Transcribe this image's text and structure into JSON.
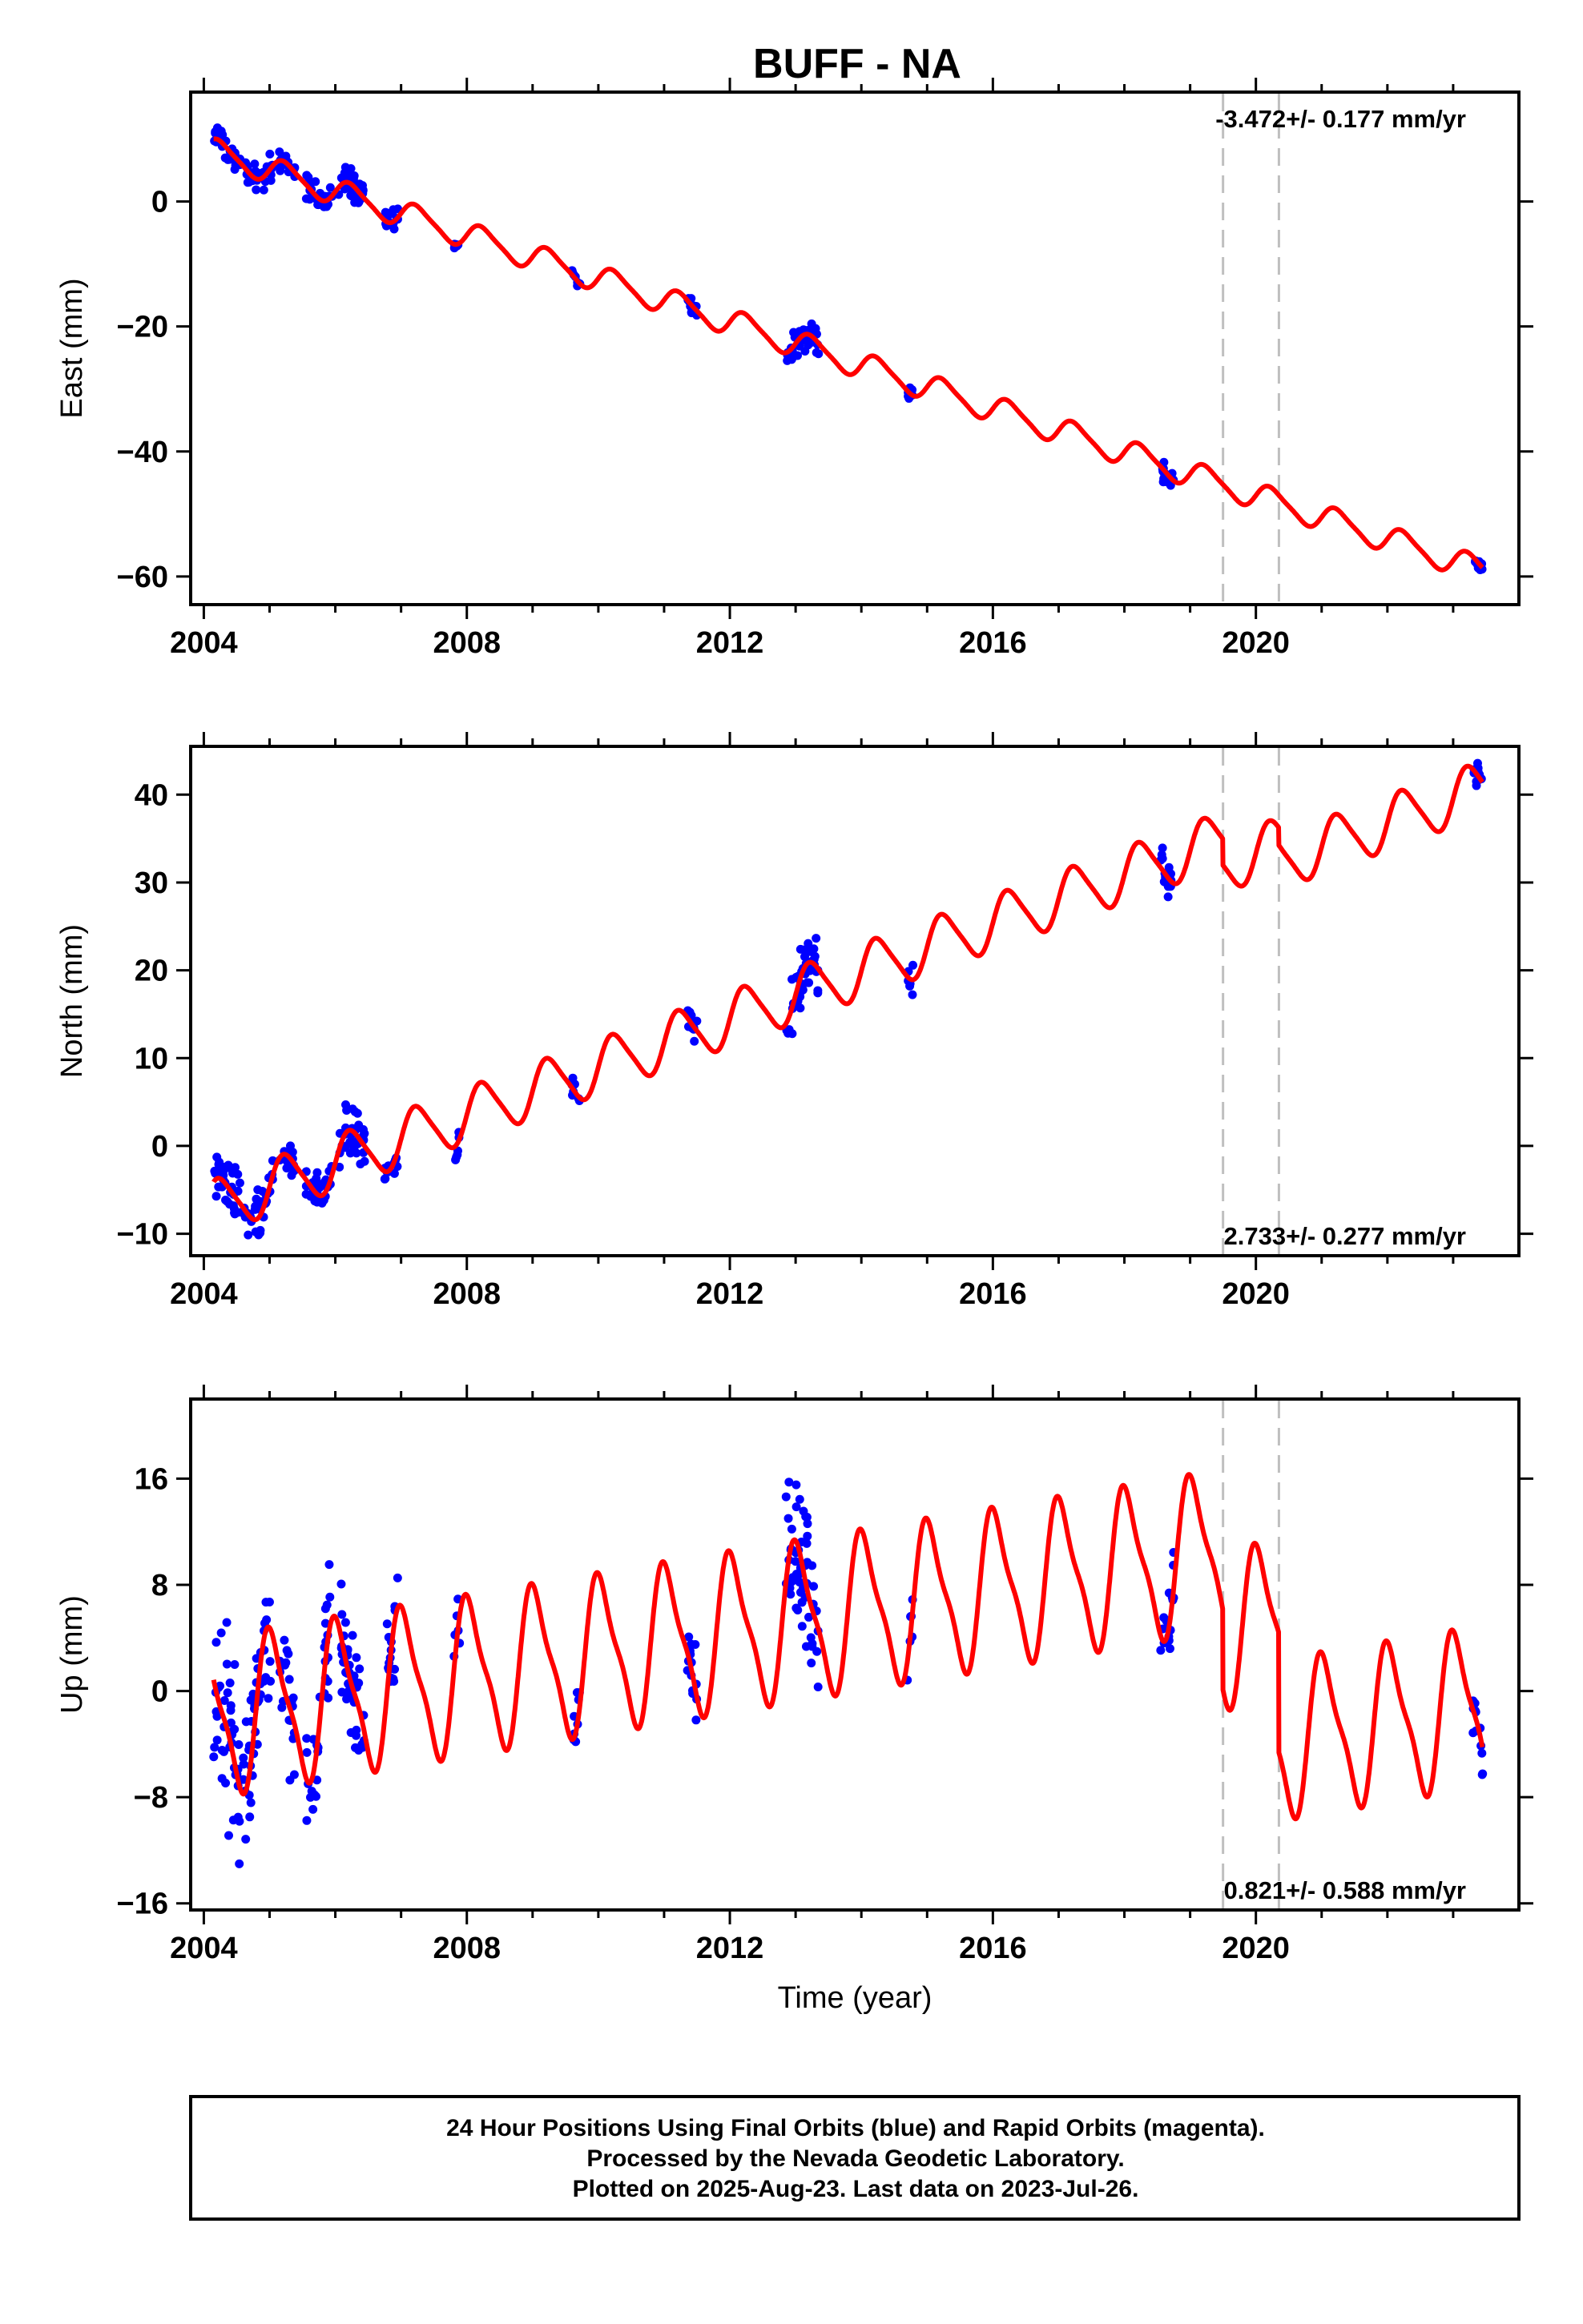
{
  "title": "BUFF - NA",
  "colors": {
    "final_orbits": "#0000ff",
    "model": "#ff0000",
    "offset_line": "#bfbfbf",
    "frame": "#000000"
  },
  "footer": {
    "line1": "24 Hour Positions Using Final Orbits (blue) and Rapid Orbits (magenta).",
    "line2": "Processed by the Nevada Geodetic Laboratory.",
    "line3": "Plotted on 2025-Aug-23. Last data on 2023-Jul-26."
  },
  "chart_data": [
    {
      "type": "scatter",
      "panel": "east",
      "ylabel": "East (mm)",
      "xlabel": "",
      "xlim": [
        2003.8,
        2024.0
      ],
      "ylim": [
        -64.5,
        17.5
      ],
      "xticks": [
        2004,
        2008,
        2012,
        2016,
        2020
      ],
      "yticks": [
        0,
        -20,
        -40,
        -60
      ],
      "offset_lines": [
        2019.5,
        2020.35
      ],
      "rate_label": "-3.472+/- 0.177 mm/yr",
      "rate_label_position": "top-right",
      "model": {
        "rate": -3.472,
        "intercept": 8.0,
        "amp_annual": 2.0,
        "phase": 0.0,
        "amp_semi": 0.4,
        "steps": [
          [
            2019.5,
            0.0
          ],
          [
            2020.35,
            0.0
          ]
        ]
      },
      "clusters": [
        {
          "start": 2004.15,
          "end": 2004.55,
          "n": 36,
          "spread": 2.5
        },
        {
          "start": 2004.6,
          "end": 2005.05,
          "n": 36,
          "spread": 2.2
        },
        {
          "start": 2005.15,
          "end": 2005.4,
          "n": 18,
          "spread": 1.6
        },
        {
          "start": 2005.55,
          "end": 2005.95,
          "n": 30,
          "spread": 2.2
        },
        {
          "start": 2006.05,
          "end": 2006.45,
          "n": 36,
          "spread": 2.4
        },
        {
          "start": 2006.75,
          "end": 2006.95,
          "n": 16,
          "spread": 1.6
        },
        {
          "start": 2007.8,
          "end": 2007.9,
          "n": 6,
          "spread": 0.8
        },
        {
          "start": 2009.6,
          "end": 2009.72,
          "n": 8,
          "spread": 1.0
        },
        {
          "start": 2011.35,
          "end": 2011.5,
          "n": 14,
          "spread": 1.5
        },
        {
          "start": 2012.85,
          "end": 2013.35,
          "n": 45,
          "spread": 2.4
        },
        {
          "start": 2014.7,
          "end": 2014.8,
          "n": 6,
          "spread": 1.0
        },
        {
          "start": 2018.55,
          "end": 2018.75,
          "n": 18,
          "spread": 1.5
        },
        {
          "start": 2023.3,
          "end": 2023.45,
          "n": 12,
          "spread": 1.0
        }
      ]
    },
    {
      "type": "scatter",
      "panel": "north",
      "ylabel": "North (mm)",
      "xlabel": "",
      "xlim": [
        2003.8,
        2024.0
      ],
      "ylim": [
        -12.5,
        45.5
      ],
      "xticks": [
        2004,
        2008,
        2012,
        2016,
        2020
      ],
      "yticks": [
        -10,
        0,
        10,
        20,
        30,
        40
      ],
      "offset_lines": [
        2019.5,
        2020.35
      ],
      "rate_label": "2.733+/- 0.277 mm/yr",
      "rate_label_position": "bottom-right",
      "model": {
        "rate": 2.733,
        "intercept": -7.0,
        "amp_annual": 3.0,
        "phase": 0.0,
        "amp_semi": 0.5,
        "steps": [
          [
            2019.5,
            -3.0
          ],
          [
            2020.35,
            -2.0
          ]
        ]
      },
      "clusters": [
        {
          "start": 2004.15,
          "end": 2004.55,
          "n": 36,
          "spread": 3.2
        },
        {
          "start": 2004.6,
          "end": 2005.05,
          "n": 36,
          "spread": 2.6
        },
        {
          "start": 2005.15,
          "end": 2005.4,
          "n": 18,
          "spread": 2.0
        },
        {
          "start": 2005.55,
          "end": 2005.95,
          "n": 30,
          "spread": 2.2
        },
        {
          "start": 2006.05,
          "end": 2006.45,
          "n": 36,
          "spread": 2.6
        },
        {
          "start": 2006.75,
          "end": 2006.95,
          "n": 16,
          "spread": 1.6
        },
        {
          "start": 2007.8,
          "end": 2007.9,
          "n": 6,
          "spread": 1.6
        },
        {
          "start": 2009.6,
          "end": 2009.72,
          "n": 8,
          "spread": 1.6
        },
        {
          "start": 2011.35,
          "end": 2011.5,
          "n": 14,
          "spread": 1.6
        },
        {
          "start": 2012.85,
          "end": 2013.35,
          "n": 45,
          "spread": 3.0
        },
        {
          "start": 2014.7,
          "end": 2014.8,
          "n": 6,
          "spread": 1.4
        },
        {
          "start": 2018.55,
          "end": 2018.75,
          "n": 18,
          "spread": 1.8
        },
        {
          "start": 2023.3,
          "end": 2023.45,
          "n": 12,
          "spread": 1.4
        }
      ]
    },
    {
      "type": "scatter",
      "panel": "up",
      "ylabel": "Up (mm)",
      "xlabel": "Time (year)",
      "xlim": [
        2003.8,
        2024.0
      ],
      "ylim": [
        -16.5,
        22.0
      ],
      "xticks": [
        2004,
        2008,
        2012,
        2016,
        2020
      ],
      "yticks": [
        16,
        8,
        0,
        -8,
        -16
      ],
      "offset_lines": [
        2019.5,
        2020.35
      ],
      "rate_label": "0.821+/- 0.588 mm/yr",
      "rate_label_position": "bottom-right",
      "model": {
        "rate": 0.821,
        "intercept": -2.0,
        "amp_annual": 5.5,
        "phase": 1.3,
        "amp_semi": 1.5,
        "steps": [
          [
            2019.5,
            -6.0
          ],
          [
            2020.35,
            -9.0
          ]
        ]
      },
      "clusters": [
        {
          "start": 2004.15,
          "end": 2004.55,
          "n": 40,
          "spread": 6.0
        },
        {
          "start": 2004.6,
          "end": 2005.05,
          "n": 40,
          "spread": 6.0
        },
        {
          "start": 2005.15,
          "end": 2005.4,
          "n": 20,
          "spread": 4.5
        },
        {
          "start": 2005.55,
          "end": 2005.95,
          "n": 30,
          "spread": 5.0
        },
        {
          "start": 2006.05,
          "end": 2006.45,
          "n": 40,
          "spread": 4.5
        },
        {
          "start": 2006.75,
          "end": 2006.95,
          "n": 16,
          "spread": 4.5
        },
        {
          "start": 2007.8,
          "end": 2007.9,
          "n": 6,
          "spread": 3.5
        },
        {
          "start": 2009.6,
          "end": 2009.72,
          "n": 8,
          "spread": 3.0
        },
        {
          "start": 2011.35,
          "end": 2011.5,
          "n": 14,
          "spread": 3.5
        },
        {
          "start": 2012.85,
          "end": 2013.35,
          "n": 55,
          "spread": 6.5
        },
        {
          "start": 2014.7,
          "end": 2014.8,
          "n": 6,
          "spread": 2.5
        },
        {
          "start": 2018.55,
          "end": 2018.75,
          "n": 18,
          "spread": 3.5
        },
        {
          "start": 2023.3,
          "end": 2023.45,
          "n": 12,
          "spread": 3.0
        }
      ]
    }
  ]
}
